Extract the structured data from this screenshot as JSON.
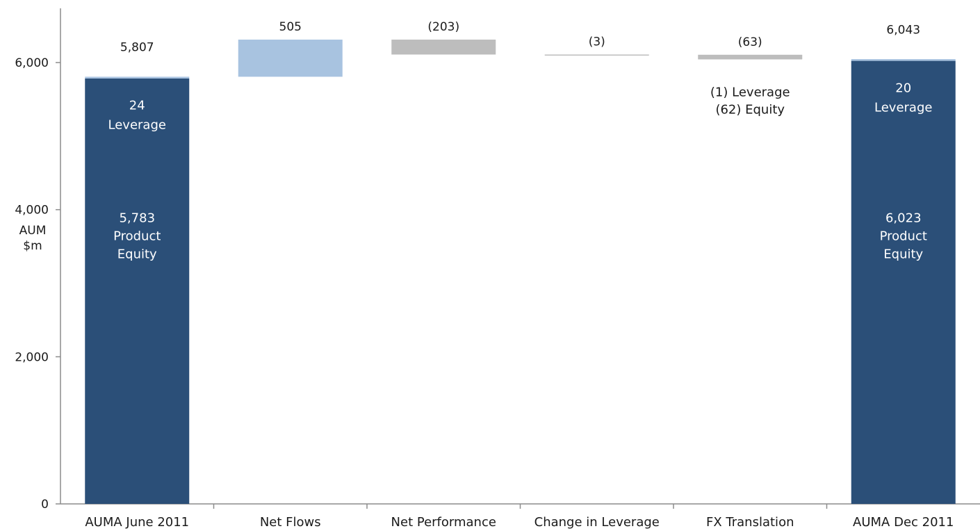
{
  "chart_data": {
    "type": "bar",
    "subtype": "waterfall",
    "title": "",
    "ylabel": [
      "AUM",
      "$m"
    ],
    "ylim": [
      0,
      6800
    ],
    "yticks": [
      0,
      2000,
      4000,
      6000
    ],
    "ytick_labels": [
      "0",
      "2,000",
      "4,000",
      "6,000"
    ],
    "grid": false,
    "legend": "none",
    "categories": [
      "AUMA June 2011",
      "Net Flows",
      "Net Performance",
      "Change in Leverage",
      "FX Translation",
      "AUMA Dec 2011"
    ],
    "bars": [
      {
        "category": "AUMA June 2011",
        "kind": "total",
        "value": 5807,
        "value_label": "5,807",
        "segments": [
          {
            "name": "Product Equity",
            "value": 5783,
            "color": "#2b4f78",
            "label_lines": [
              "5,783",
              "Product",
              "Equity"
            ]
          },
          {
            "name": "Leverage",
            "value": 24,
            "color": "#a8c3e0",
            "label_lines": [
              "24",
              "Leverage"
            ]
          }
        ]
      },
      {
        "category": "Net Flows",
        "kind": "delta",
        "start": 5807,
        "value": 505,
        "value_label": "505",
        "color": "#a8c3e0"
      },
      {
        "category": "Net Performance",
        "kind": "delta",
        "start": 6312,
        "value": -203,
        "value_label": "(203)",
        "color": "#bdbdbd"
      },
      {
        "category": "Change in Leverage",
        "kind": "delta",
        "start": 6109,
        "value": -3,
        "value_label": "(3)",
        "color": "#bdbdbd"
      },
      {
        "category": "FX Translation",
        "kind": "delta",
        "start": 6106,
        "value": -63,
        "value_label": "(63)",
        "color": "#bdbdbd",
        "note_lines": [
          "(1) Leverage",
          "(62) Equity"
        ]
      },
      {
        "category": "AUMA Dec 2011",
        "kind": "total",
        "value": 6043,
        "value_label": "6,043",
        "segments": [
          {
            "name": "Product Equity",
            "value": 6023,
            "color": "#2b4f78",
            "label_lines": [
              "6,023",
              "Product",
              "Equity"
            ]
          },
          {
            "name": "Leverage",
            "value": 20,
            "color": "#a8c3e0",
            "label_lines": [
              "20",
              "Leverage"
            ]
          }
        ]
      }
    ],
    "colors": {
      "equity": "#2b4f78",
      "leverage": "#a8c3e0",
      "increase": "#a8c3e0",
      "decrease": "#bdbdbd",
      "axis": "#8c8c8c"
    }
  }
}
